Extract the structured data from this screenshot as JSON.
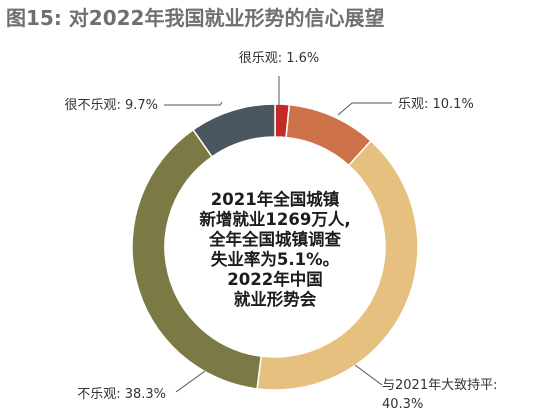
{
  "header": {
    "title": "图15: 对2022年我国就业形势的信心展望"
  },
  "center_text": {
    "lines": [
      "2021年全国城镇",
      "新增就业1269万人,",
      "全年全国城镇调查",
      "失业率为5.1%。",
      "2022年中国",
      "就业形势会"
    ]
  },
  "chart_data": {
    "type": "pie",
    "title": "图15: 对2022年我国就业形势的信心展望",
    "variant": "donut",
    "slices": [
      {
        "label": "很乐观: 1.6%",
        "value": 1.6,
        "color": "#c52a2a"
      },
      {
        "label": "乐观: 10.1%",
        "value": 10.1,
        "color": "#cd7148"
      },
      {
        "label_lines": [
          "与2021年大致持平:",
          "40.3%"
        ],
        "value": 40.3,
        "color": "#e6c07e"
      },
      {
        "label": "不乐观: 38.3%",
        "value": 38.3,
        "color": "#7b7a45"
      },
      {
        "label": "很不乐观: 9.7%",
        "value": 9.7,
        "color": "#4a5660"
      }
    ]
  }
}
